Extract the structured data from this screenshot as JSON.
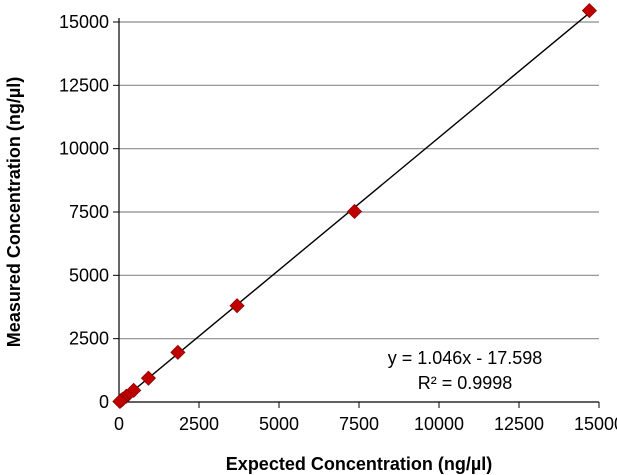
{
  "chart_data": {
    "type": "scatter",
    "title": "",
    "xlabel": "Expected Concentration (ng/µl)",
    "ylabel": "Measured Concentration (ng/µl)",
    "xlim": [
      0,
      15000
    ],
    "ylim": [
      0,
      15000
    ],
    "x_ticks": [
      0,
      2500,
      5000,
      7500,
      10000,
      12500,
      15000
    ],
    "y_ticks": [
      0,
      2500,
      5000,
      7500,
      10000,
      12500,
      15000
    ],
    "grid": "horizontal",
    "series": [
      {
        "marker": "diamond",
        "color": "#c00000",
        "points": [
          {
            "x": 14700,
            "y": 15450
          },
          {
            "x": 7360,
            "y": 7520
          },
          {
            "x": 3690,
            "y": 3800
          },
          {
            "x": 1840,
            "y": 1960
          },
          {
            "x": 920,
            "y": 940
          },
          {
            "x": 460,
            "y": 460
          },
          {
            "x": 230,
            "y": 230
          },
          {
            "x": 115,
            "y": 110
          },
          {
            "x": 57,
            "y": 50
          },
          {
            "x": 28,
            "y": 20
          }
        ]
      }
    ],
    "trendline": {
      "slope": 1.046,
      "intercept": -17.598,
      "color": "#000000",
      "equation": "y = 1.046x - 17.598",
      "r_squared": "R² = 0.9998"
    }
  }
}
